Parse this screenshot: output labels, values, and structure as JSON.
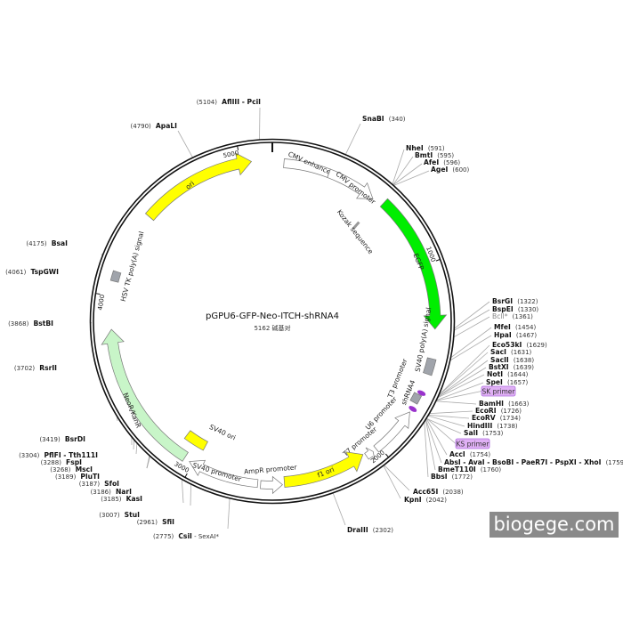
{
  "plasmid": {
    "name": "pGPU6-GFP-Neo-ITCH-shRNA4",
    "length_label": "5162 碱基对",
    "length_bp": 5162
  },
  "ticks": [
    {
      "pos": 1000,
      "label": "1000"
    },
    {
      "pos": 2000,
      "label": "2000"
    },
    {
      "pos": 3000,
      "label": "3000"
    },
    {
      "pos": 4000,
      "label": "4000"
    },
    {
      "pos": 5000,
      "label": "5000"
    }
  ],
  "features": [
    {
      "name": "CMV enhancer",
      "start": 60,
      "end": 300,
      "color": "#ffffff",
      "dir": "none",
      "kind": "box"
    },
    {
      "name": "CMV promoter",
      "start": 300,
      "end": 565,
      "color": "#ffffff",
      "dir": "cw",
      "kind": "arrow"
    },
    {
      "name": "Kozak sequence",
      "start": 590,
      "end": 600,
      "color": "#999999",
      "dir": "none",
      "kind": "mark"
    },
    {
      "name": "EGFP",
      "start": 620,
      "end": 1330,
      "color": "#00ee00",
      "dir": "cw",
      "kind": "arrow"
    },
    {
      "name": "SV40 poly(A) signal",
      "start": 1480,
      "end": 1560,
      "color": "#a0a4ab",
      "dir": "none",
      "kind": "box"
    },
    {
      "name": "T3 promoter",
      "start": 1650,
      "end": 1668,
      "color": "#9933cc",
      "dir": "none",
      "kind": "dot"
    },
    {
      "name": "shRNA4",
      "start": 1672,
      "end": 1718,
      "color": "#a0a4ab",
      "dir": "none",
      "kind": "box"
    },
    {
      "name": "T7 purple",
      "start": 1740,
      "end": 1758,
      "color": "#9933cc",
      "dir": "none",
      "kind": "dot"
    },
    {
      "name": "U6 promoter",
      "start": 1770,
      "end": 2020,
      "color": "#ffffff",
      "dir": "ccw",
      "kind": "arrow"
    },
    {
      "name": "T7 promoter",
      "start": 2040,
      "end": 2080,
      "color": "#ffffff",
      "dir": "ccw",
      "kind": "arrow"
    },
    {
      "name": "f1 ori",
      "start": 2090,
      "end": 2520,
      "color": "#ffff00",
      "dir": "ccw",
      "kind": "arrow"
    },
    {
      "name": "AmpR promoter",
      "start": 2530,
      "end": 2640,
      "color": "#ffffff",
      "dir": "ccw",
      "kind": "arrow"
    },
    {
      "name": "SV40 promoter",
      "start": 2655,
      "end": 3020,
      "color": "#ffffff",
      "dir": "cw",
      "kind": "arrow"
    },
    {
      "name": "SV40 ori",
      "start": 2985,
      "end": 3110,
      "color": "#ffff00",
      "dir": "none",
      "kind": "inner"
    },
    {
      "name": "NeoR/KanR",
      "start": 3050,
      "end": 3830,
      "color": "#c8f5c8",
      "dir": "cw",
      "kind": "arrow"
    },
    {
      "name": "HSV TK poly(A) signal",
      "start": 4075,
      "end": 4125,
      "color": "#a0a4ab",
      "dir": "none",
      "kind": "box"
    },
    {
      "name": "ori",
      "start": 4450,
      "end": 5055,
      "color": "#ffff00",
      "dir": "cw",
      "kind": "arrow"
    }
  ],
  "primers": [
    {
      "name": "SK primer",
      "color": "#e0b0f5"
    },
    {
      "name": "KS primer",
      "color": "#e0b0f5"
    }
  ],
  "enzymes": [
    {
      "name": "AflIII - PciI",
      "pos": 5104
    },
    {
      "name": "ApaLI",
      "pos": 4790
    },
    {
      "name": "SnaBI",
      "pos": 340
    },
    {
      "name": "NheI",
      "pos": 591
    },
    {
      "name": "BmtI",
      "pos": 595
    },
    {
      "name": "AfeI",
      "pos": 596
    },
    {
      "name": "AgeI",
      "pos": 600
    },
    {
      "name": "BsrGI",
      "pos": 1322
    },
    {
      "name": "BspEI",
      "pos": 1330
    },
    {
      "name": "BclI*",
      "pos": 1361,
      "gray": true
    },
    {
      "name": "MfeI",
      "pos": 1454
    },
    {
      "name": "HpaI",
      "pos": 1467
    },
    {
      "name": "Eco53kI",
      "pos": 1629
    },
    {
      "name": "SacI",
      "pos": 1631
    },
    {
      "name": "SacII",
      "pos": 1638
    },
    {
      "name": "BstXI",
      "pos": 1639
    },
    {
      "name": "NotI",
      "pos": 1644
    },
    {
      "name": "SpeI",
      "pos": 1657
    },
    {
      "name": "BamHI",
      "pos": 1663
    },
    {
      "name": "EcoRI",
      "pos": 1726
    },
    {
      "name": "EcoRV",
      "pos": 1734
    },
    {
      "name": "HindIII",
      "pos": 1738
    },
    {
      "name": "SalI",
      "pos": 1753
    },
    {
      "name": "AccI",
      "pos": 1754
    },
    {
      "name": "AbsI - AvaI - BsoBI - PaeR7I - PspXI - XhoI",
      "pos": 1759
    },
    {
      "name": "BmeT110I",
      "pos": 1760
    },
    {
      "name": "BbsI",
      "pos": 1772
    },
    {
      "name": "Acc65I",
      "pos": 2038
    },
    {
      "name": "KpnI",
      "pos": 2042
    },
    {
      "name": "DraIII",
      "pos": 2302
    },
    {
      "name": "CsiI",
      "pos": 2775,
      "extra": "SexAI*"
    },
    {
      "name": "StuI",
      "pos": 3007
    },
    {
      "name": "SfiI",
      "pos": 2961
    },
    {
      "name": "KasI",
      "pos": 3185
    },
    {
      "name": "NarI",
      "pos": 3186
    },
    {
      "name": "SfoI",
      "pos": 3187
    },
    {
      "name": "PluTI",
      "pos": 3189
    },
    {
      "name": "MscI",
      "pos": 3268
    },
    {
      "name": "FspI",
      "pos": 3288
    },
    {
      "name": "PflFI - Tth111I",
      "pos": 3304
    },
    {
      "name": "BsrDI",
      "pos": 3419
    },
    {
      "name": "RsrII",
      "pos": 3702
    },
    {
      "name": "BstBI",
      "pos": 3868
    },
    {
      "name": "TspGWI",
      "pos": 4061
    },
    {
      "name": "BsaI",
      "pos": 4175
    }
  ],
  "watermark": "biogege.com"
}
